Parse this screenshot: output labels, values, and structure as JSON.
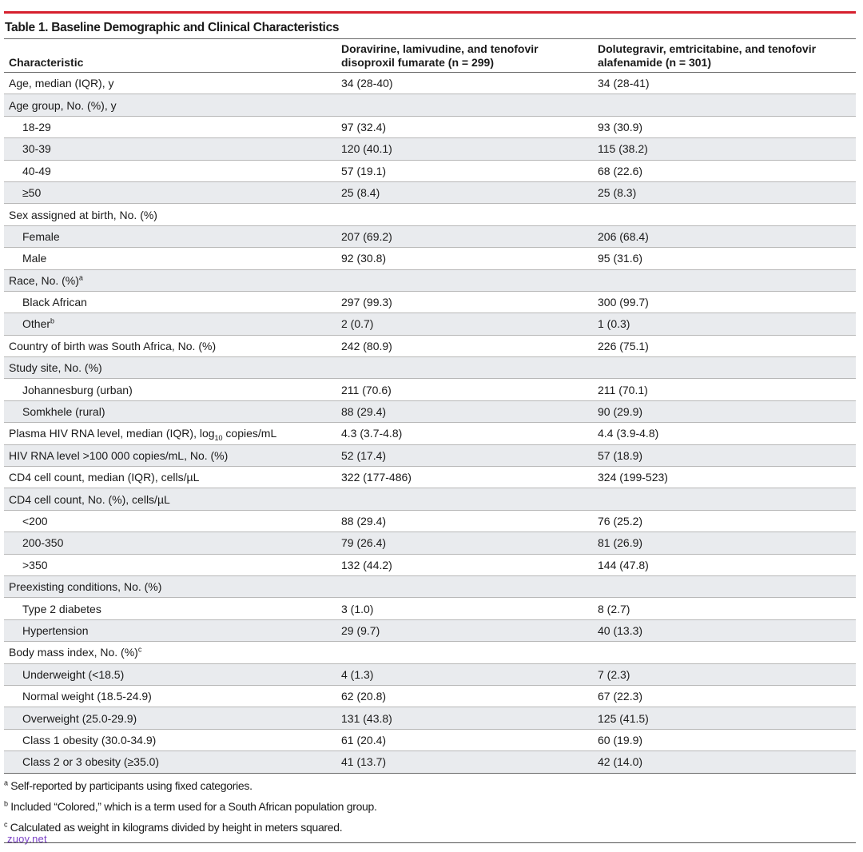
{
  "title": {
    "label": "Table 1.",
    "text": "Baseline Demographic and Clinical Characteristics"
  },
  "header": {
    "col1": "Characteristic",
    "col2": "Doravirine, lamivudine, and tenofovir disoproxil fumarate (n = 299)",
    "col2_line1": "Doravirine, lamivudine, and tenofovir",
    "col2_line2": "disoproxil fumarate (n = 299)",
    "col3_line1": "Dolutegravir, emtricitabine, and tenofovir",
    "col3_line2": "alafenamide (n = 301)"
  },
  "rows": [
    {
      "label": "Age, median (IQR), y",
      "a": "34 (28-40)",
      "b": "34 (28-41)"
    },
    {
      "label": "Age group, No. (%), y",
      "a": "",
      "b": ""
    },
    {
      "label": "18-29",
      "a": "97 (32.4)",
      "b": "93 (30.9)"
    },
    {
      "label": "30-39",
      "a": "120 (40.1)",
      "b": "115 (38.2)"
    },
    {
      "label": "40-49",
      "a": "57 (19.1)",
      "b": "68 (22.6)"
    },
    {
      "label": "≥50",
      "a": "25 (8.4)",
      "b": "25 (8.3)"
    },
    {
      "label": "Sex assigned at birth, No. (%)",
      "a": "",
      "b": ""
    },
    {
      "label": "Female",
      "a": "207 (69.2)",
      "b": "206 (68.4)"
    },
    {
      "label": "Male",
      "a": "92 (30.8)",
      "b": "95 (31.6)"
    },
    {
      "label": "Race, No. (%)",
      "sup": "a",
      "a": "",
      "b": ""
    },
    {
      "label": "Black African",
      "a": "297 (99.3)",
      "b": "300 (99.7)"
    },
    {
      "label": "Other",
      "sup": "b",
      "a": "2 (0.7)",
      "b": "1 (0.3)"
    },
    {
      "label": "Country of birth was South Africa, No. (%)",
      "a": "242 (80.9)",
      "b": "226 (75.1)"
    },
    {
      "label": "Study site, No. (%)",
      "a": "",
      "b": ""
    },
    {
      "label": "Johannesburg (urban)",
      "a": "211 (70.6)",
      "b": "211 (70.1)"
    },
    {
      "label": "Somkhele (rural)",
      "a": "88 (29.4)",
      "b": "90 (29.9)"
    },
    {
      "label_pre": "Plasma HIV RNA level, median (IQR), log",
      "label_sub": "10",
      "label_post": " copies/mL",
      "a": "4.3 (3.7-4.8)",
      "b": "4.4 (3.9-4.8)"
    },
    {
      "label": "HIV RNA level >100 000 copies/mL, No. (%)",
      "a": "52 (17.4)",
      "b": "57 (18.9)"
    },
    {
      "label": "CD4 cell count, median (IQR), cells/µL",
      "a": "322 (177-486)",
      "b": "324 (199-523)"
    },
    {
      "label": "CD4 cell count, No. (%), cells/µL",
      "a": "",
      "b": ""
    },
    {
      "label": "<200",
      "a": "88 (29.4)",
      "b": "76 (25.2)"
    },
    {
      "label": "200-350",
      "a": "79 (26.4)",
      "b": "81 (26.9)"
    },
    {
      "label": ">350",
      "a": "132 (44.2)",
      "b": "144 (47.8)"
    },
    {
      "label": "Preexisting conditions, No. (%)",
      "a": "",
      "b": ""
    },
    {
      "label": "Type 2 diabetes",
      "a": "3 (1.0)",
      "b": "8 (2.7)"
    },
    {
      "label": "Hypertension",
      "a": "29 (9.7)",
      "b": "40 (13.3)"
    },
    {
      "label": "Body mass index, No. (%)",
      "sup": "c",
      "a": "",
      "b": ""
    },
    {
      "label": "Underweight (<18.5)",
      "a": "4 (1.3)",
      "b": "7 (2.3)"
    },
    {
      "label": "Normal weight (18.5-24.9)",
      "a": "62 (20.8)",
      "b": "67 (22.3)"
    },
    {
      "label": "Overweight (25.0-29.9)",
      "a": "131 (43.8)",
      "b": "125 (41.5)"
    },
    {
      "label": "Class 1 obesity (30.0-34.9)",
      "a": "61 (20.4)",
      "b": "60 (19.9)"
    },
    {
      "label": "Class 2 or 3 obesity (≥35.0)",
      "a": "41 (13.7)",
      "b": "42 (14.0)"
    }
  ],
  "footnotes": [
    {
      "mark": "a",
      "text": " Self-reported by participants using fixed categories."
    },
    {
      "mark": "b",
      "text": " Included “Colored,” which is a term used for a South African population group."
    },
    {
      "mark": "c",
      "text": " Calculated as weight in kilograms divided by height in meters squared."
    }
  ],
  "watermark": "zuoy.net",
  "colors": {
    "accent_rule": "#d6202e",
    "alt_row": "#e9ebee",
    "watermark": "#7a3fc6"
  }
}
